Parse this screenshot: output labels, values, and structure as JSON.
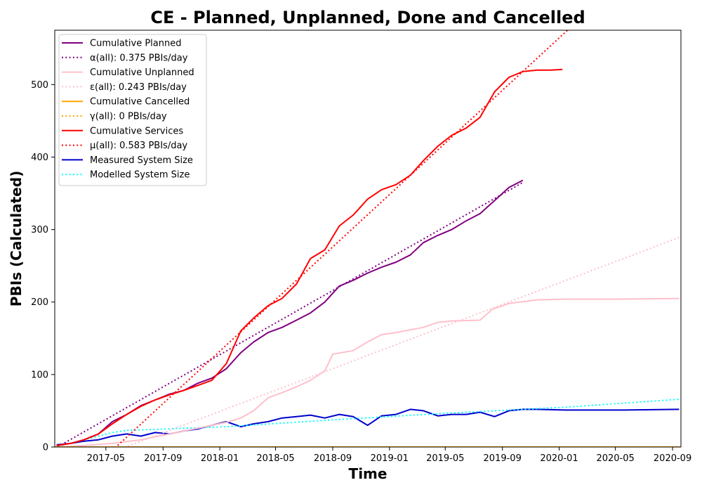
{
  "chart_data": {
    "type": "line",
    "title": "CE - Planned, Unplanned, Done  and Cancelled",
    "xlabel": "Time",
    "ylabel": "PBIs (Calculated)",
    "xlim": [
      "2017-01-11",
      "2020-09-19"
    ],
    "ylim": [
      0,
      575
    ],
    "x_ticks": [
      "2017-05",
      "2017-09",
      "2018-01",
      "2018-05",
      "2018-09",
      "2019-01",
      "2019-05",
      "2019-09",
      "2020-01",
      "2020-05",
      "2020-09"
    ],
    "y_ticks": [
      0,
      100,
      200,
      300,
      400,
      500
    ],
    "grid": false,
    "legend_position": "top-left",
    "series": [
      {
        "name": "Cumulative Planned",
        "color": "#800080",
        "style": "solid",
        "x": [
          "2017-01-15",
          "2017-02-15",
          "2017-03-15",
          "2017-04-15",
          "2017-05-15",
          "2017-06-15",
          "2017-07-15",
          "2017-08-15",
          "2017-09-15",
          "2017-10-15",
          "2017-11-15",
          "2017-12-15",
          "2018-01-15",
          "2018-02-15",
          "2018-03-15",
          "2018-04-15",
          "2018-05-15",
          "2018-06-15",
          "2018-07-15",
          "2018-08-15",
          "2018-09-15",
          "2018-10-15",
          "2018-11-15",
          "2018-12-15",
          "2019-01-15",
          "2019-02-15",
          "2019-03-15",
          "2019-04-15",
          "2019-05-15",
          "2019-06-15",
          "2019-07-15",
          "2019-08-15",
          "2019-09-15",
          "2019-10-15"
        ],
        "y": [
          2,
          5,
          10,
          18,
          35,
          45,
          57,
          65,
          73,
          78,
          88,
          95,
          108,
          130,
          145,
          158,
          165,
          175,
          185,
          200,
          222,
          230,
          240,
          248,
          255,
          265,
          282,
          292,
          300,
          312,
          322,
          340,
          358,
          368
        ]
      },
      {
        "name": "α(all): 0.375 PBIs/day",
        "color": "#800080",
        "style": "dotted",
        "x": [
          "2017-01-11",
          "2019-10-15"
        ],
        "y": [
          -2,
          365
        ]
      },
      {
        "name": "Cumulative Unplanned",
        "color": "#ffc0cb",
        "style": "solid",
        "x": [
          "2017-01-15",
          "2017-03-15",
          "2017-05-15",
          "2017-07-15",
          "2017-09-15",
          "2017-11-15",
          "2018-01-15",
          "2018-02-15",
          "2018-03-15",
          "2018-04-15",
          "2018-05-15",
          "2018-06-15",
          "2018-07-15",
          "2018-08-15",
          "2018-09-01",
          "2018-10-15",
          "2018-11-15",
          "2018-12-15",
          "2019-01-15",
          "2019-03-15",
          "2019-04-15",
          "2019-05-15",
          "2019-07-15",
          "2019-08-10",
          "2019-09-15",
          "2019-11-15",
          "2020-01-15",
          "2020-05-15",
          "2020-09-15"
        ],
        "y": [
          0,
          2,
          5,
          10,
          18,
          26,
          34,
          40,
          50,
          68,
          75,
          83,
          92,
          105,
          128,
          133,
          145,
          155,
          158,
          165,
          172,
          174,
          175,
          190,
          198,
          203,
          204,
          204,
          205
        ]
      },
      {
        "name": "ε(all): 0.243 PBIs/day",
        "color": "#ffc0cb",
        "style": "dotted",
        "x": [
          "2017-01-11",
          "2020-09-19"
        ],
        "y": [
          -37,
          290
        ]
      },
      {
        "name": "Cumulative Cancelled",
        "color": "#ffa500",
        "style": "solid",
        "x": [
          "2017-01-11",
          "2020-09-19"
        ],
        "y": [
          0,
          0
        ]
      },
      {
        "name": "γ(all): 0 PBIs/day",
        "color": "#ffa500",
        "style": "dotted",
        "x": [
          "2017-01-11",
          "2020-09-19"
        ],
        "y": [
          0,
          0
        ]
      },
      {
        "name": "Cumulative Services",
        "color": "#ff0000",
        "style": "solid",
        "x": [
          "2017-01-15",
          "2017-02-15",
          "2017-03-15",
          "2017-04-15",
          "2017-05-15",
          "2017-06-15",
          "2017-07-15",
          "2017-08-15",
          "2017-09-15",
          "2017-10-15",
          "2017-11-15",
          "2017-12-15",
          "2018-01-15",
          "2018-02-15",
          "2018-03-15",
          "2018-04-15",
          "2018-05-15",
          "2018-06-15",
          "2018-07-15",
          "2018-08-15",
          "2018-09-15",
          "2018-10-15",
          "2018-11-15",
          "2018-12-15",
          "2019-01-15",
          "2019-02-15",
          "2019-03-15",
          "2019-04-15",
          "2019-05-15",
          "2019-06-15",
          "2019-07-15",
          "2019-08-15",
          "2019-09-15",
          "2019-10-15",
          "2019-11-15",
          "2019-12-15",
          "2020-01-08"
        ],
        "y": [
          2,
          5,
          10,
          18,
          32,
          45,
          56,
          65,
          72,
          78,
          85,
          92,
          115,
          160,
          178,
          195,
          205,
          225,
          260,
          272,
          305,
          320,
          342,
          355,
          362,
          375,
          395,
          415,
          430,
          440,
          455,
          490,
          510,
          518,
          520,
          520,
          521
        ]
      },
      {
        "name": "μ(all): 0.583 PBIs/day",
        "color": "#ff0000",
        "style": "dotted",
        "x": [
          "2017-01-11",
          "2020-01-19"
        ],
        "y": [
          -78,
          575
        ]
      },
      {
        "name": "Measured System Size",
        "color": "#0000cd",
        "style": "solid",
        "x": [
          "2017-01-15",
          "2017-02-15",
          "2017-03-15",
          "2017-04-15",
          "2017-05-15",
          "2017-06-15",
          "2017-07-15",
          "2017-08-15",
          "2017-09-15",
          "2017-10-15",
          "2017-11-15",
          "2017-12-15",
          "2018-01-15",
          "2018-02-15",
          "2018-03-15",
          "2018-04-15",
          "2018-05-15",
          "2018-06-15",
          "2018-07-15",
          "2018-08-15",
          "2018-09-15",
          "2018-10-15",
          "2018-11-15",
          "2018-12-15",
          "2019-01-15",
          "2019-02-15",
          "2019-03-15",
          "2019-04-15",
          "2019-05-15",
          "2019-06-15",
          "2019-07-15",
          "2019-08-15",
          "2019-09-15",
          "2019-10-15",
          "2019-11-15",
          "2020-01-15",
          "2020-05-15",
          "2020-09-15"
        ],
        "y": [
          3,
          5,
          8,
          10,
          15,
          18,
          15,
          20,
          18,
          22,
          25,
          30,
          35,
          28,
          32,
          35,
          40,
          42,
          44,
          40,
          45,
          42,
          30,
          43,
          45,
          52,
          50,
          43,
          45,
          45,
          48,
          42,
          50,
          52,
          52,
          51,
          51,
          52
        ]
      },
      {
        "name": "Modelled System Size",
        "color": "#00ffff",
        "style": "dotted",
        "x": [
          "2017-01-11",
          "2017-03-15",
          "2017-05-15",
          "2017-06-15",
          "2018-01-15",
          "2018-09-15",
          "2019-05-15",
          "2020-01-15",
          "2020-09-19"
        ],
        "y": [
          0,
          10,
          20,
          23,
          28,
          38,
          47,
          55,
          66
        ]
      }
    ]
  }
}
